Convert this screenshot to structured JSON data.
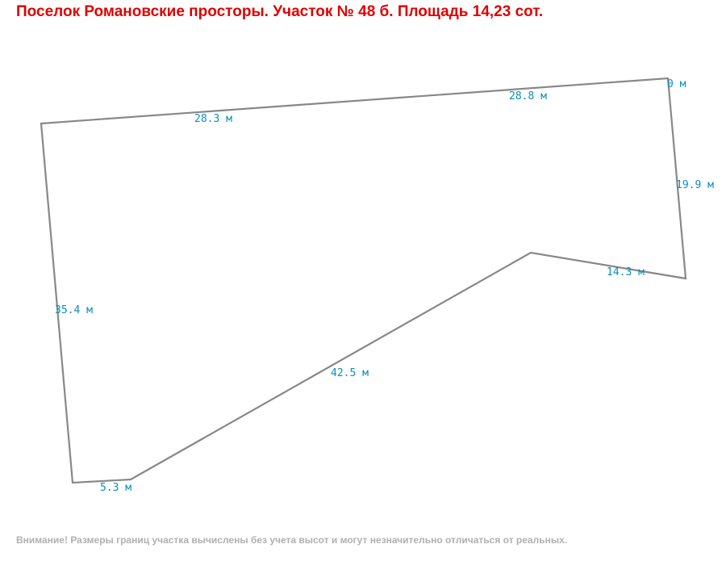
{
  "header": {
    "title": "Поселок Романовские просторы. Участок № 48 б. Площадь 14,23 сот."
  },
  "plot": {
    "dimensions": {
      "top_left": "28.3 м",
      "top_right": "28.8 м",
      "top_end": "0 м",
      "right": "19.9 м",
      "inner": "14.3 м",
      "diagonal": "42.5 м",
      "bottom": "5.3 м",
      "left": "35.4 м"
    }
  },
  "footer": {
    "note": "Внимание! Размеры границ участка вычислены без учета высот и могут незначительно отличаться от реальных."
  },
  "colors": {
    "title": "#e00000",
    "boundary": "#888888",
    "dimension_text": "#0a8fc0",
    "footnote": "#b0b0b0",
    "background": "#ffffff"
  }
}
